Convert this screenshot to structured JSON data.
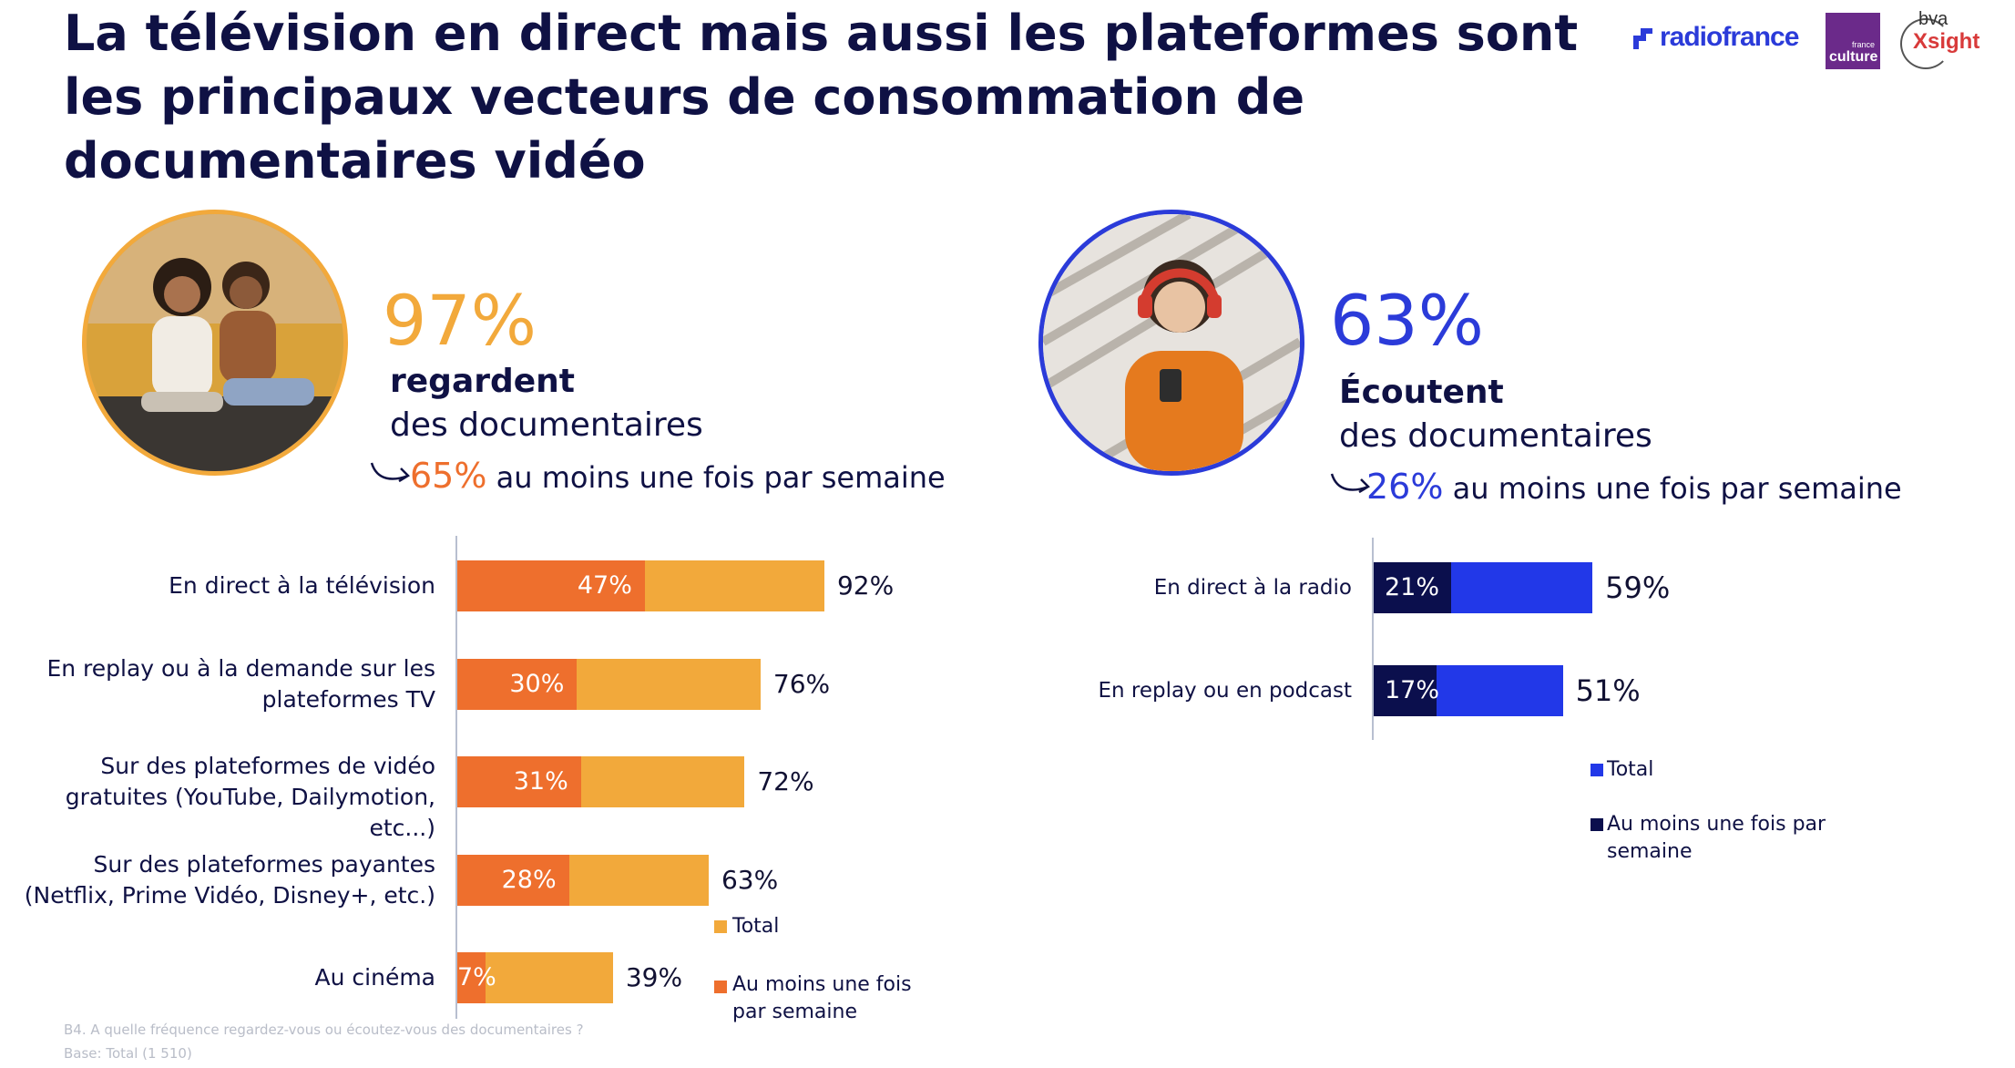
{
  "title": "La télévision en direct mais aussi les plateformes sont les principaux vecteurs de consommation de documentaires vidéo",
  "logos": {
    "radiofrance": "radiofrance",
    "france_culture_small": "france",
    "france_culture": "culture",
    "bva": "bva",
    "xsight": "Xsight"
  },
  "colors": {
    "orange_total": "#f2a93b",
    "orange_freq": "#ee6f2d",
    "blue_total": "#2238e8",
    "blue_freq": "#0b0f4d",
    "text_dark": "#0f1144"
  },
  "video": {
    "headline_pct": "97%",
    "verb": "regardent",
    "object": "des documentaires",
    "weekly_pct": "65%",
    "weekly_text": "au moins une fois par semaine",
    "photo_icon": "photo-two-women-on-sofa"
  },
  "audio": {
    "headline_pct": "63%",
    "verb": "Écoutent",
    "object": "des documentaires",
    "weekly_pct": "26%",
    "weekly_text": "au moins une fois par semaine",
    "photo_icon": "photo-woman-with-headphones"
  },
  "chart_data": [
    {
      "type": "bar",
      "orientation": "horizontal",
      "categories": [
        "En direct à la télévision",
        "En replay ou à la demande sur les plateformes TV",
        "Sur des plateformes de vidéo gratuites (YouTube, Dailymotion, etc...)",
        "Sur des plateformes payantes (Netflix, Prime Vidéo, Disney+, etc.)",
        "Au cinéma"
      ],
      "series": [
        {
          "name": "Total",
          "values": [
            92,
            76,
            72,
            63,
            39
          ],
          "labels": [
            "92%",
            "76%",
            "72%",
            "63%",
            "39%"
          ],
          "color": "#f2a93b"
        },
        {
          "name": "Au moins une fois par semaine",
          "values": [
            47,
            30,
            31,
            28,
            7
          ],
          "labels": [
            "47%",
            "30%",
            "31%",
            "28%",
            "7%"
          ],
          "color": "#ee6f2d"
        }
      ],
      "xlim": [
        0,
        100
      ],
      "legend": "bottom-right"
    },
    {
      "type": "bar",
      "orientation": "horizontal",
      "categories": [
        "En direct à la radio",
        "En replay ou en podcast"
      ],
      "series": [
        {
          "name": "Total",
          "values": [
            59,
            51
          ],
          "labels": [
            "59%",
            "51%"
          ],
          "color": "#2238e8"
        },
        {
          "name": "Au moins une fois par semaine",
          "values": [
            21,
            17
          ],
          "labels": [
            "21%",
            "17%"
          ],
          "color": "#0b0f4d"
        }
      ],
      "xlim": [
        0,
        100
      ],
      "legend": "bottom-right"
    }
  ],
  "legend_left": {
    "total": "Total",
    "freq": "Au moins une fois par semaine"
  },
  "legend_right": {
    "total": "Total",
    "freq": "Au moins une fois par semaine"
  },
  "footnote": {
    "question": "B4. A quelle fréquence regardez-vous ou écoutez-vous des documentaires ?",
    "base": "Base: Total (1 510)"
  }
}
